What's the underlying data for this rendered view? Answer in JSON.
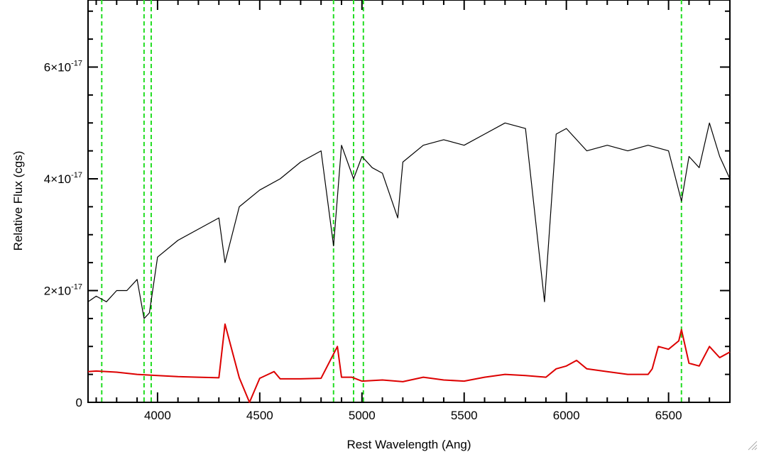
{
  "chart_data": {
    "type": "line",
    "title": "",
    "xlabel": "Rest Wavelength (Ang)",
    "ylabel": "Relative Flux (cgs)",
    "xlim": [
      3660,
      6800
    ],
    "ylim": [
      0,
      7.2e-17
    ],
    "xticks": [
      {
        "value": 4000,
        "label": "4000"
      },
      {
        "value": 4500,
        "label": "4500"
      },
      {
        "value": 5000,
        "label": "5000"
      },
      {
        "value": 5500,
        "label": "5500"
      },
      {
        "value": 6000,
        "label": "6000"
      },
      {
        "value": 6500,
        "label": "6500"
      }
    ],
    "yticks": [
      {
        "value": 0,
        "mantissa": "0",
        "exponent": ""
      },
      {
        "value": 2e-17,
        "mantissa": "2×10",
        "exponent": "-17"
      },
      {
        "value": 4e-17,
        "mantissa": "4×10",
        "exponent": "-17"
      },
      {
        "value": 6e-17,
        "mantissa": "6×10",
        "exponent": "-17"
      }
    ],
    "grid": false,
    "reference_lines": [
      3727,
      3934,
      3969,
      4861,
      4959,
      5007,
      6563
    ],
    "reference_line_color": "#22dd22",
    "series": [
      {
        "color": "#000000",
        "x": [
          3660,
          3700,
          3750,
          3800,
          3850,
          3900,
          3934,
          3960,
          4000,
          4100,
          4200,
          4300,
          4330,
          4400,
          4500,
          4600,
          4700,
          4800,
          4861,
          4900,
          4959,
          5000,
          5050,
          5100,
          5175,
          5200,
          5300,
          5400,
          5500,
          5600,
          5700,
          5800,
          5893,
          5950,
          6000,
          6100,
          6200,
          6300,
          6400,
          6500,
          6563,
          6600,
          6650,
          6700,
          6750,
          6800
        ],
        "y": [
          1.8e-17,
          1.9e-17,
          1.8e-17,
          2e-17,
          2e-17,
          2.2e-17,
          1.5e-17,
          1.6e-17,
          2.6e-17,
          2.9e-17,
          3.1e-17,
          3.3e-17,
          2.5e-17,
          3.5e-17,
          3.8e-17,
          4e-17,
          4.3e-17,
          4.5e-17,
          2.8e-17,
          4.6e-17,
          4e-17,
          4.4e-17,
          4.2e-17,
          4.1e-17,
          3.3e-17,
          4.3e-17,
          4.6e-17,
          4.7e-17,
          4.6e-17,
          4.8e-17,
          5e-17,
          4.9e-17,
          1.8e-17,
          4.8e-17,
          4.9e-17,
          4.5e-17,
          4.6e-17,
          4.5e-17,
          4.6e-17,
          4.5e-17,
          3.6e-17,
          4.4e-17,
          4.2e-17,
          5e-17,
          4.4e-17,
          4e-17
        ]
      },
      {
        "color": "#dd0000",
        "x": [
          3660,
          3700,
          3800,
          3900,
          4000,
          4100,
          4200,
          4300,
          4330,
          4400,
          4450,
          4500,
          4570,
          4600,
          4700,
          4800,
          4880,
          4900,
          4950,
          5000,
          5100,
          5200,
          5300,
          5400,
          5500,
          5600,
          5700,
          5800,
          5900,
          5950,
          6000,
          6050,
          6100,
          6200,
          6300,
          6400,
          6420,
          6450,
          6500,
          6550,
          6563,
          6600,
          6650,
          6700,
          6750,
          6800
        ],
        "y": [
          5.5e-18,
          5.6e-18,
          5.4e-18,
          5e-18,
          4.8e-18,
          4.6e-18,
          4.5e-18,
          4.4e-18,
          1.4e-17,
          4.4e-18,
          0.0,
          4.3e-18,
          5.5e-18,
          4.2e-18,
          4.2e-18,
          4.3e-18,
          1e-17,
          4.5e-18,
          4.5e-18,
          3.8e-18,
          4e-18,
          3.7e-18,
          4.5e-18,
          4e-18,
          3.8e-18,
          4.5e-18,
          5e-18,
          4.8e-18,
          4.5e-18,
          6e-18,
          6.5e-18,
          7.5e-18,
          6e-18,
          5.5e-18,
          5e-18,
          5e-18,
          6e-18,
          1e-17,
          9.5e-18,
          1.1e-17,
          1.3e-17,
          7e-18,
          6.5e-18,
          1e-17,
          8e-18,
          9e-18
        ]
      }
    ]
  }
}
